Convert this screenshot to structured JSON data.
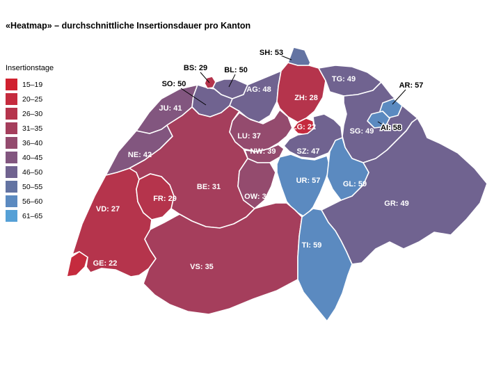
{
  "title": "«Heatmap» – durchschnittliche Insertionsdauer pro Kanton",
  "legend": {
    "title": "Insertionstage",
    "bins": [
      {
        "label": "15–19",
        "color": "#d0202f"
      },
      {
        "label": "20–25",
        "color": "#c52b3e"
      },
      {
        "label": "26–30",
        "color": "#b5344c"
      },
      {
        "label": "31–35",
        "color": "#a53e5c"
      },
      {
        "label": "36–40",
        "color": "#944b6e"
      },
      {
        "label": "40–45",
        "color": "#82567f"
      },
      {
        "label": "46–50",
        "color": "#706390"
      },
      {
        "label": "50–55",
        "color": "#6373a2"
      },
      {
        "label": "56–60",
        "color": "#5b8ac0"
      },
      {
        "label": "61–65",
        "color": "#55a0d6"
      }
    ]
  },
  "chart_data": {
    "type": "heatmap",
    "title": "«Heatmap» – durchschnittliche Insertionsdauer pro Kanton",
    "value_label": "Insertionstage",
    "cantons": [
      {
        "code": "GE",
        "value": 22,
        "label": "GE: 22"
      },
      {
        "code": "VD",
        "value": 27,
        "label": "VD: 27"
      },
      {
        "code": "NE",
        "value": 42,
        "label": "NE: 42"
      },
      {
        "code": "JU",
        "value": 41,
        "label": "JU: 41"
      },
      {
        "code": "SO",
        "value": 50,
        "label": "SO: 50"
      },
      {
        "code": "BS",
        "value": 29,
        "label": "BS: 29"
      },
      {
        "code": "BL",
        "value": 50,
        "label": "BL: 50"
      },
      {
        "code": "AG",
        "value": 48,
        "label": "AG: 48"
      },
      {
        "code": "ZH",
        "value": 28,
        "label": "ZH: 28"
      },
      {
        "code": "SH",
        "value": 53,
        "label": "SH: 53"
      },
      {
        "code": "TG",
        "value": 49,
        "label": "TG: 49"
      },
      {
        "code": "SG",
        "value": 49,
        "label": "SG: 49"
      },
      {
        "code": "AR",
        "value": 57,
        "label": "AR: 57"
      },
      {
        "code": "AI",
        "value": 58,
        "label": "AI: 58"
      },
      {
        "code": "ZG",
        "value": 22,
        "label": "ZG: 22"
      },
      {
        "code": "LU",
        "value": 37,
        "label": "LU: 37"
      },
      {
        "code": "NW",
        "value": 39,
        "label": "NW: 39"
      },
      {
        "code": "OW",
        "value": 38,
        "label": "OW: 38"
      },
      {
        "code": "SZ",
        "value": 47,
        "label": "SZ: 47"
      },
      {
        "code": "UR",
        "value": 57,
        "label": "UR: 57"
      },
      {
        "code": "GL",
        "value": 59,
        "label": "GL: 59"
      },
      {
        "code": "BE",
        "value": 31,
        "label": "BE: 31"
      },
      {
        "code": "FR",
        "value": 29,
        "label": "FR: 29"
      },
      {
        "code": "VS",
        "value": 35,
        "label": "VS: 35"
      },
      {
        "code": "TI",
        "value": 59,
        "label": "TI: 59"
      },
      {
        "code": "GR",
        "value": 49,
        "label": "GR: 49"
      }
    ]
  }
}
